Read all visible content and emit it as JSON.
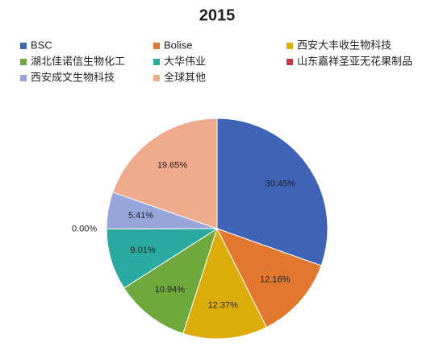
{
  "chart_data": {
    "type": "pie",
    "title": "2015",
    "categories": [
      "BSC",
      "Bolise",
      "西安大丰收生物科技",
      "湖北佳诺信生物化工",
      "大华伟业",
      "山东嘉祥圣亚无花果制品",
      "西安成文生物科技",
      "全球其他"
    ],
    "values": [
      30.45,
      12.16,
      12.37,
      10.94,
      9.01,
      0.0,
      5.41,
      19.65
    ],
    "value_labels": [
      "30.45%",
      "12.16%",
      "12.37%",
      "10.94%",
      "9.01%",
      "0.00%",
      "5.41%",
      "19.65%"
    ],
    "colors": [
      "#3f63b6",
      "#e2772f",
      "#dcad0a",
      "#6fa83d",
      "#2aa9a1",
      "#c2394d",
      "#97a5db",
      "#efa98c"
    ]
  }
}
